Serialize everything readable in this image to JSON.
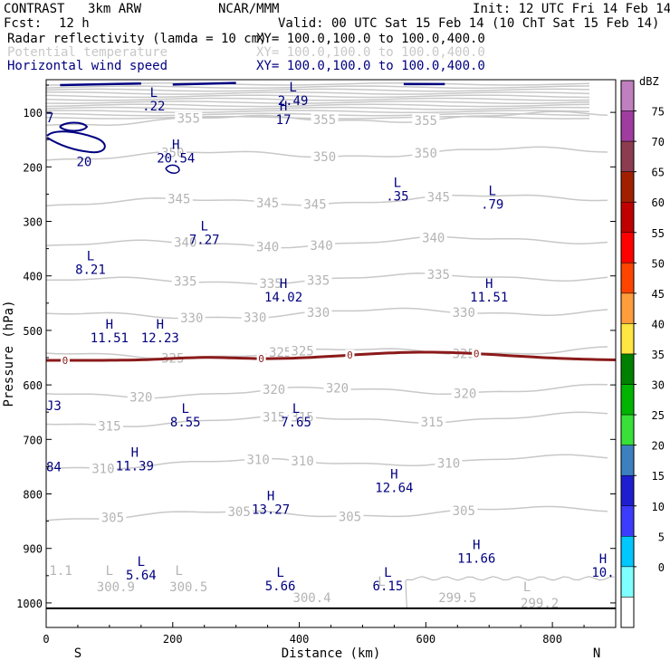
{
  "header": {
    "project": "CONTRAST",
    "model": "3km ARW",
    "org": "NCAR/MMM",
    "init": "Init: 12 UTC Fri 14 Feb 14",
    "fcst_label": "Fcst:",
    "fcst_value": "12 h",
    "valid": "Valid: 00 UTC Sat 15 Feb 14 (10 ChT Sat 15 Feb 14)"
  },
  "fields": [
    {
      "name": "Radar reflectivity (lamda = 10 cm)",
      "xy": "XY= 100.0,100.0 to 100.0,400.0",
      "color": "#000000"
    },
    {
      "name": "Potential temperature",
      "xy": "XY= 100.0,100.0 to 100.0,400.0",
      "color": "#c8c8c8"
    },
    {
      "name": "Horizontal wind speed",
      "xy": "XY= 100.0,100.0 to 100.0,400.0",
      "color": "#000080"
    }
  ],
  "chart_data": {
    "type": "cross-section",
    "xlabel": "Distance (km)",
    "ylabel": "Pressure (hPa)",
    "xlim": [
      0,
      900
    ],
    "ylim": [
      1045,
      40
    ],
    "x_ticks": [
      0,
      200,
      400,
      600,
      800
    ],
    "y_ticks": [
      100,
      200,
      300,
      400,
      500,
      600,
      700,
      800,
      900,
      1000
    ],
    "x_end_labels": [
      "S",
      "N"
    ],
    "theta_contours": [
      {
        "value": 355,
        "p": 118,
        "labels": [
          [
            225,
            "355"
          ],
          [
            440,
            "355"
          ],
          [
            600,
            "355"
          ]
        ]
      },
      {
        "value": 350,
        "p": 182,
        "labels": [
          [
            200,
            "350"
          ],
          [
            440,
            "350"
          ],
          [
            600,
            "350"
          ]
        ]
      },
      {
        "value": 345,
        "p": 268,
        "labels": [
          [
            210,
            "345"
          ],
          [
            350,
            "345"
          ],
          [
            425,
            "345"
          ],
          [
            620,
            "345"
          ]
        ]
      },
      {
        "value": 340,
        "p": 345,
        "labels": [
          [
            220,
            "340"
          ],
          [
            350,
            "340"
          ],
          [
            435,
            "340"
          ],
          [
            612,
            "340"
          ]
        ]
      },
      {
        "value": 335,
        "p": 412,
        "labels": [
          [
            220,
            "335"
          ],
          [
            355,
            "335"
          ],
          [
            430,
            "335"
          ],
          [
            620,
            "335"
          ]
        ]
      },
      {
        "value": 330,
        "p": 475,
        "labels": [
          [
            230,
            "330"
          ],
          [
            330,
            "330"
          ],
          [
            430,
            "330"
          ],
          [
            660,
            "330"
          ]
        ]
      },
      {
        "value": 325,
        "p": 547,
        "labels": [
          [
            200,
            "325"
          ],
          [
            370,
            "325"
          ],
          [
            405,
            "325"
          ],
          [
            660,
            "325"
          ]
        ]
      },
      {
        "value": 320,
        "p": 618,
        "labels": [
          [
            150,
            "320"
          ],
          [
            360,
            "320"
          ],
          [
            460,
            "320"
          ],
          [
            662,
            "320"
          ]
        ]
      },
      {
        "value": 315,
        "p": 670,
        "labels": [
          [
            100,
            "315"
          ],
          [
            360,
            "315"
          ],
          [
            405,
            "315"
          ],
          [
            610,
            "315"
          ]
        ]
      },
      {
        "value": 310,
        "p": 748,
        "labels": [
          [
            90,
            "310"
          ],
          [
            335,
            "310"
          ],
          [
            405,
            "310"
          ],
          [
            636,
            "310"
          ]
        ]
      },
      {
        "value": 305,
        "p": 842,
        "labels": [
          [
            105,
            "305"
          ],
          [
            305,
            "305"
          ],
          [
            480,
            "305"
          ],
          [
            660,
            "305"
          ]
        ]
      }
    ],
    "low_theta_labels": [
      [
        5,
        940,
        "1.1"
      ],
      [
        110,
        970,
        "300.9"
      ],
      [
        225,
        970,
        "300.5"
      ],
      [
        420,
        990,
        "300.4"
      ],
      [
        650,
        990,
        "299.5"
      ],
      [
        780,
        1000,
        "299.2"
      ]
    ],
    "low_theta_L": [
      [
        100,
        940
      ],
      [
        210,
        940
      ],
      [
        530,
        960
      ],
      [
        760,
        970
      ]
    ],
    "wind_labels": [
      [
        170,
        75,
        "L",
        ".22"
      ],
      [
        390,
        65,
        "L",
        "2.49"
      ],
      [
        375,
        100,
        "H",
        "17"
      ],
      [
        205,
        170,
        "H",
        "20.54"
      ],
      [
        555,
        240,
        "L",
        ".35"
      ],
      [
        705,
        255,
        "L",
        ".79"
      ],
      [
        250,
        320,
        "L",
        "7.27"
      ],
      [
        70,
        375,
        "L",
        "8.21"
      ],
      [
        375,
        425,
        "H",
        "14.02"
      ],
      [
        700,
        425,
        "H",
        "11.51"
      ],
      [
        100,
        500,
        "H",
        "11.51"
      ],
      [
        180,
        500,
        "H",
        "12.23"
      ],
      [
        220,
        655,
        "L",
        "8.55"
      ],
      [
        395,
        655,
        "L",
        "7.65"
      ],
      [
        140,
        735,
        "H",
        "11.39"
      ],
      [
        550,
        775,
        "H",
        "12.64"
      ],
      [
        355,
        815,
        "H",
        "13.27"
      ],
      [
        680,
        905,
        "H",
        "11.66"
      ],
      [
        150,
        935,
        "L",
        "5.64"
      ],
      [
        370,
        955,
        "L",
        "5.66"
      ],
      [
        540,
        955,
        "L",
        "6.15"
      ],
      [
        880,
        930,
        "H",
        "10."
      ]
    ],
    "wind_edge_labels": [
      [
        0,
        110,
        "7"
      ],
      [
        60,
        190,
        "20"
      ],
      [
        0,
        638,
        "J3"
      ],
      [
        0,
        750,
        "84"
      ]
    ],
    "freezing_level": {
      "label": "0",
      "label_x": [
        30,
        340,
        480,
        680
      ]
    },
    "colorbar": {
      "title": "dBZ",
      "levels": [
        0,
        5,
        10,
        15,
        20,
        25,
        30,
        35,
        40,
        45,
        50,
        55,
        60,
        65,
        70,
        75
      ],
      "colors": [
        "#ffffff",
        "#7fffff",
        "#00c8ff",
        "#3c3cff",
        "#1e1ed0",
        "#3c80c0",
        "#38e038",
        "#00b400",
        "#008000",
        "#ffe640",
        "#ff9c3c",
        "#ff4400",
        "#ff0000",
        "#c00000",
        "#a02000",
        "#8c3c50",
        "#a03ca0",
        "#c080c0"
      ]
    }
  }
}
